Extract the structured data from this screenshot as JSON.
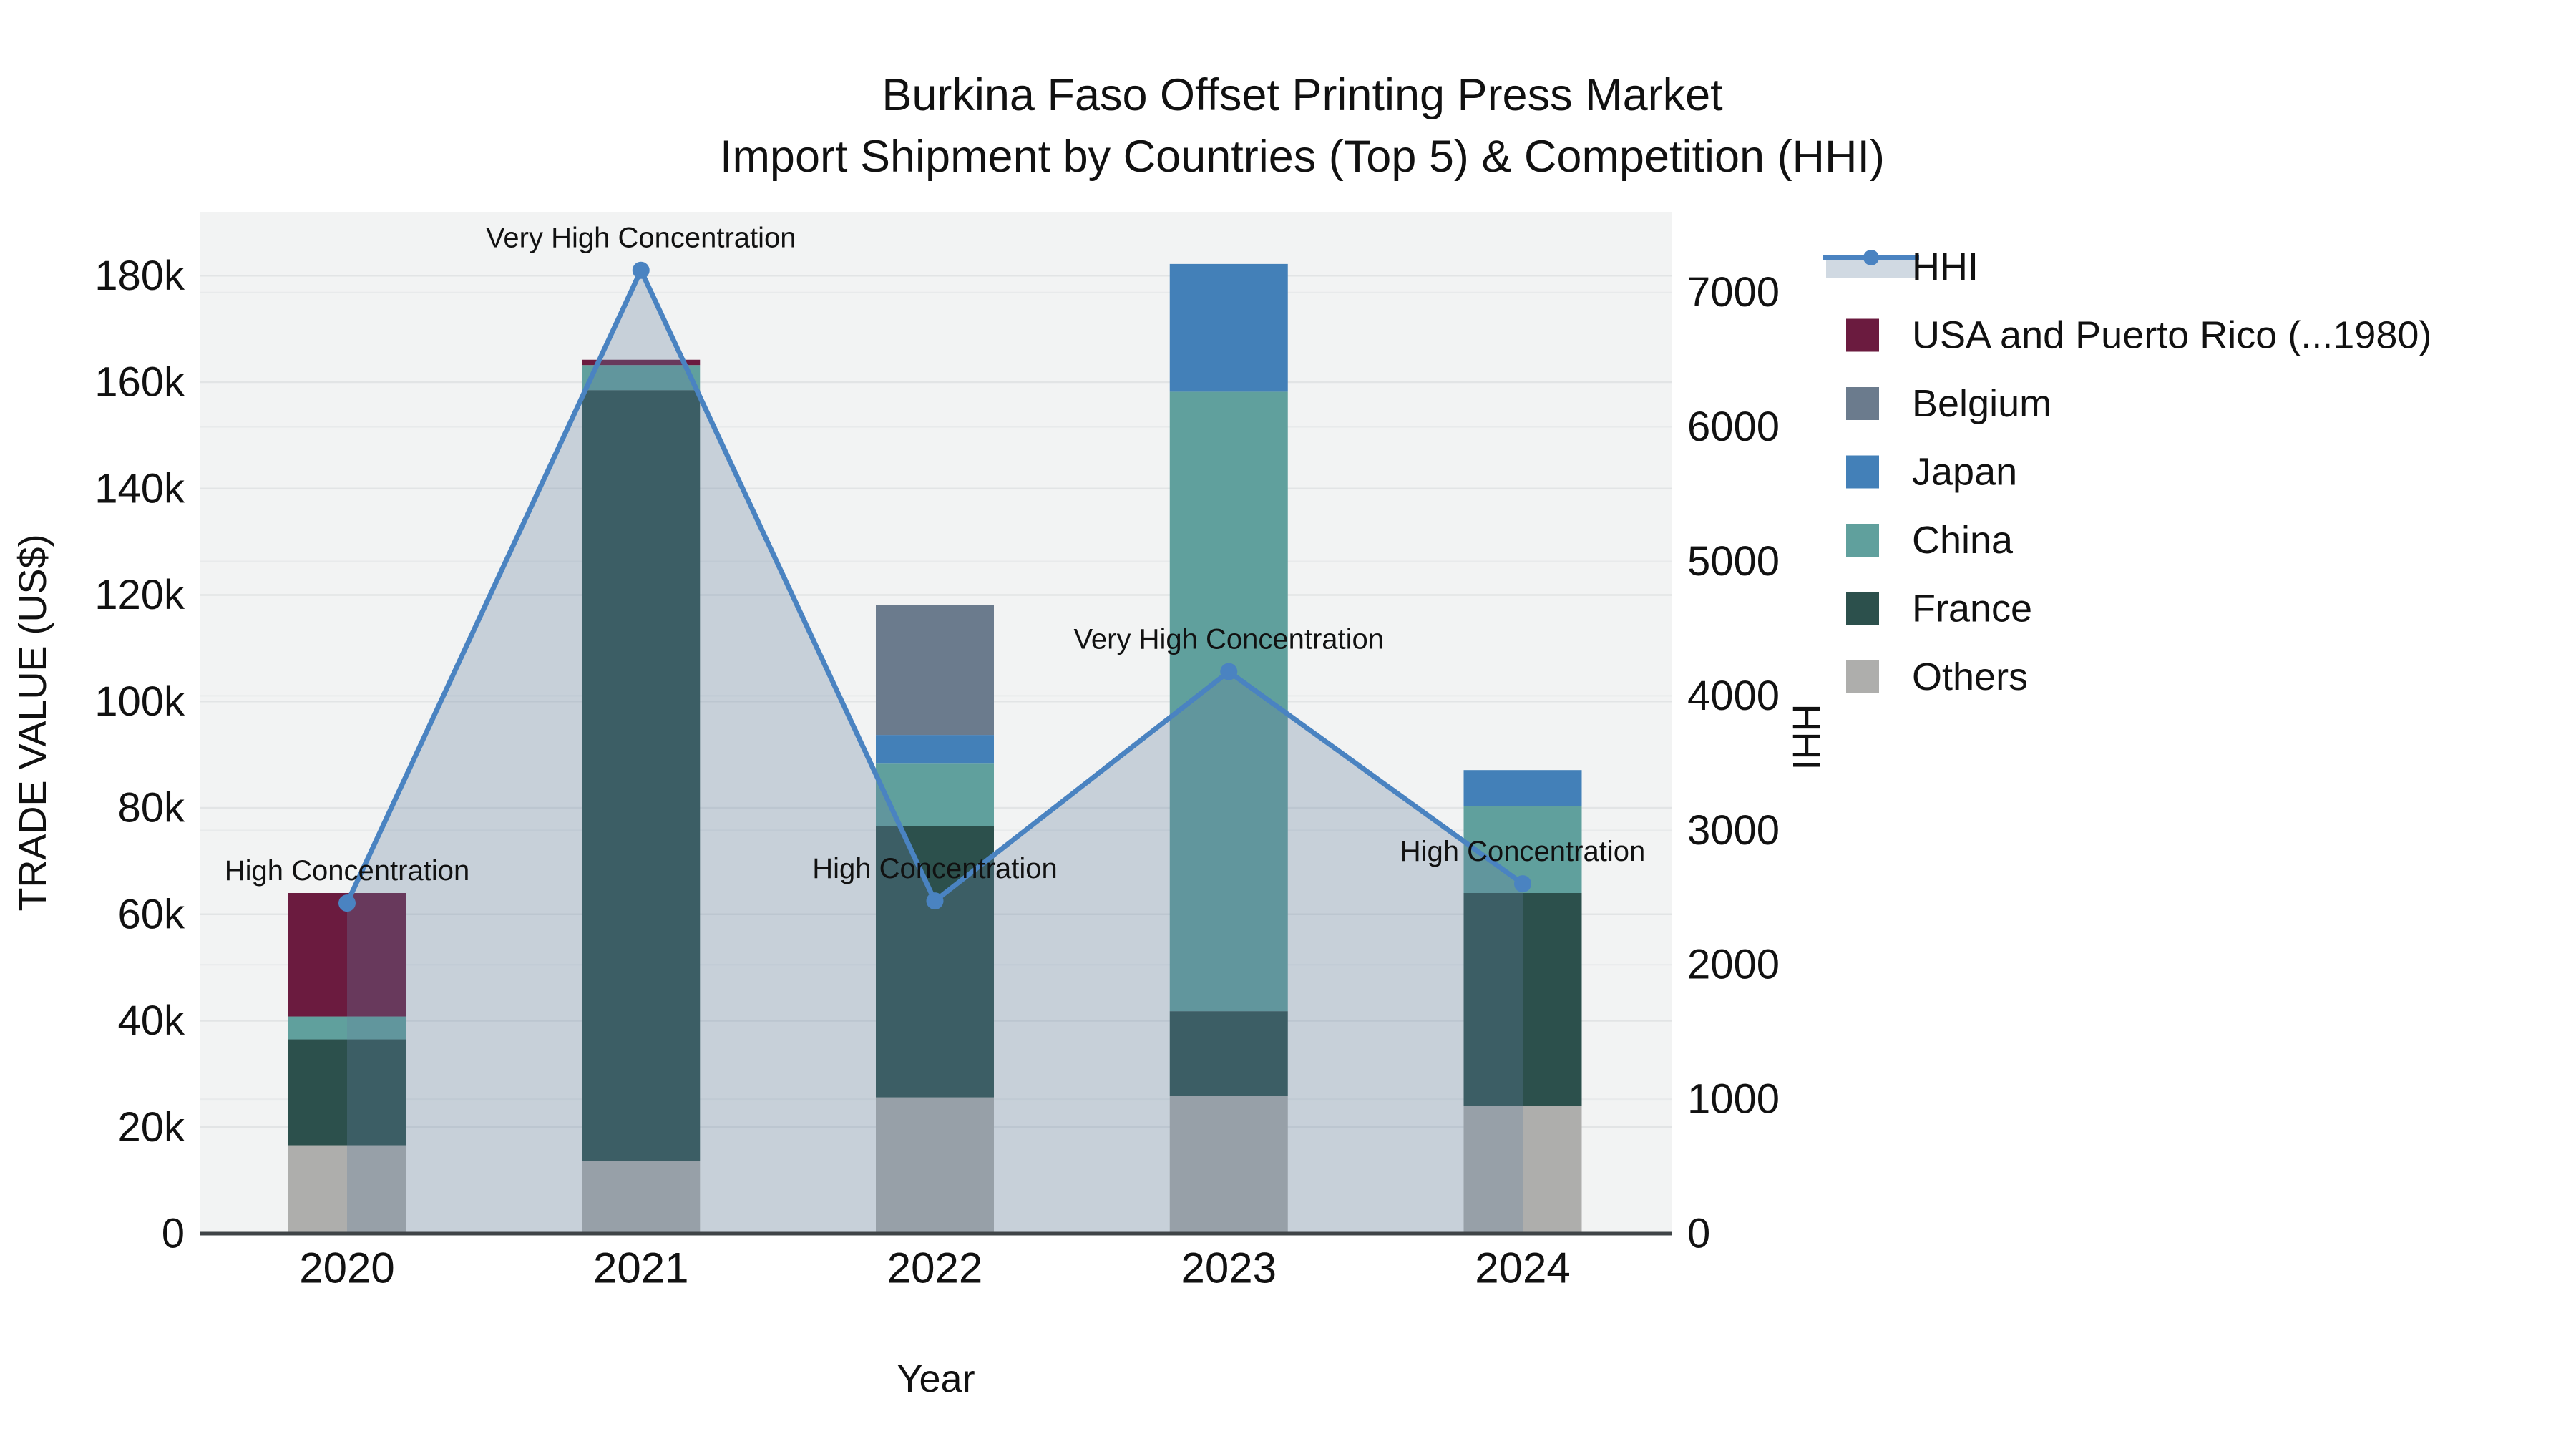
{
  "title": {
    "line1": "Burkina Faso Offset Printing Press Market",
    "line2": "Import Shipment by Countries (Top 5) & Competition (HHI)"
  },
  "axes": {
    "y_left": {
      "title": "TRADE VALUE (US$)",
      "tick_labels": [
        "0",
        "20k",
        "40k",
        "60k",
        "80k",
        "100k",
        "120k",
        "140k",
        "160k",
        "180k"
      ],
      "tick_values": [
        0,
        20000,
        40000,
        60000,
        80000,
        100000,
        120000,
        140000,
        160000,
        180000
      ],
      "range": [
        0,
        192000
      ]
    },
    "y_right": {
      "title": "HHI",
      "tick_labels": [
        "0",
        "1000",
        "2000",
        "3000",
        "4000",
        "5000",
        "6000",
        "7000"
      ],
      "tick_values": [
        0,
        1000,
        2000,
        3000,
        4000,
        5000,
        6000,
        7000
      ],
      "range": [
        0,
        7600
      ]
    },
    "x": {
      "title": "Year",
      "categories": [
        "2020",
        "2021",
        "2022",
        "2023",
        "2024"
      ]
    }
  },
  "chart_data": {
    "type": "stacked-bar+line",
    "categories": [
      "2020",
      "2021",
      "2022",
      "2023",
      "2024"
    ],
    "series": [
      {
        "name": "USA and Puerto Rico (...1980)",
        "color": "#6B1B3F",
        "values": [
          23200,
          1000,
          0,
          0,
          0
        ]
      },
      {
        "name": "Belgium",
        "color": "#6B7B8D",
        "values": [
          0,
          0,
          24400,
          0,
          0
        ]
      },
      {
        "name": "Japan",
        "color": "#4380B8",
        "values": [
          0,
          0,
          5400,
          24000,
          6700
        ]
      },
      {
        "name": "China",
        "color": "#60A09D",
        "values": [
          4300,
          4700,
          11700,
          116400,
          16400
        ]
      },
      {
        "name": "France",
        "color": "#2C504C",
        "values": [
          19900,
          144900,
          51000,
          15900,
          40000
        ]
      },
      {
        "name": "Others",
        "color": "#AEAEAC",
        "values": [
          16600,
          13600,
          25600,
          25900,
          24000
        ]
      }
    ],
    "stack_order": [
      "Others",
      "France",
      "China",
      "Japan",
      "Belgium",
      "USA and Puerto Rico (...1980)"
    ],
    "line_series": {
      "name": "HHI",
      "axis": "right",
      "color": "#4A83C1",
      "area_fill": "rgba(100,130,160,0.30)",
      "values": [
        2458,
        7165,
        2474,
        4180,
        2602
      ]
    },
    "annotations": [
      {
        "category": "2020",
        "text": "High Concentration"
      },
      {
        "category": "2021",
        "text": "Very High Concentration"
      },
      {
        "category": "2022",
        "text": "High Concentration"
      },
      {
        "category": "2023",
        "text": "Very High Concentration"
      },
      {
        "category": "2024",
        "text": "High Concentration"
      }
    ],
    "legend_order": [
      "HHI",
      "USA and Puerto Rico (...1980)",
      "Belgium",
      "Japan",
      "China",
      "France",
      "Others"
    ],
    "legend_position": "right",
    "grid": true,
    "plot_background": "#F2F3F3",
    "gridline_color_left": "#E2E4E5",
    "gridline_color_right": "#E8EAEB",
    "spine_color": "#3F4447",
    "legend_area_swatch_color": "#D0D9E2"
  }
}
